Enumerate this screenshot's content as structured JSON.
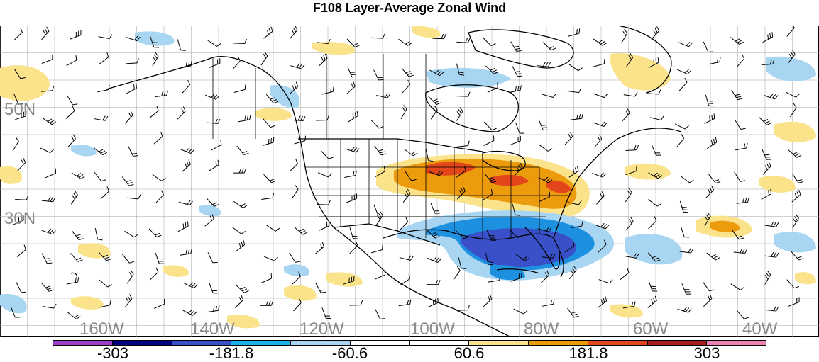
{
  "title": "F108 Layer-Average Zonal Wind",
  "latitude_labels": [
    "50N",
    "30N"
  ],
  "longitude_labels": [
    "160W",
    "140W",
    "120W",
    "100W",
    "80W",
    "60W",
    "40W"
  ],
  "colorbar": {
    "colors": [
      "#9b3fc8",
      "#000080",
      "#3a50c8",
      "#1ab0e8",
      "#a8d6f2",
      "#ffffff",
      "#ffffff",
      "#fae38a",
      "#ec9b0d",
      "#e3461b",
      "#a21e1e",
      "#ef82b4"
    ],
    "labels": [
      "-303",
      "-181.8",
      "-60.6",
      "60.6",
      "181.8",
      "303"
    ]
  },
  "colors": {
    "grid": "#a0a0a0",
    "coast": "#000000",
    "label_gray": "#8a8a8a",
    "light_blue": "#a8d6f2",
    "blue_mid": "#1e90e0",
    "blue_strong": "#3a50c8",
    "light_yellow": "#fae38a",
    "orange": "#ec9b0d",
    "red_orange": "#e3461b"
  }
}
